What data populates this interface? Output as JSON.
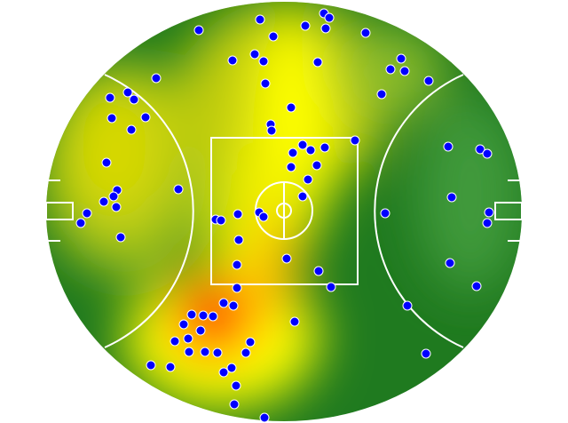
{
  "chart_data": {
    "type": "scatter",
    "color": "#0000ff",
    "xlim": [
      -268,
      268
    ],
    "ylim": [
      -236,
      236
    ],
    "x": [
      45,
      51,
      -27,
      24,
      47,
      -96,
      -12,
      92,
      -33,
      -58,
      -23,
      38,
      132,
      120,
      136,
      -144,
      -21,
      163,
      110,
      -176,
      -196,
      -169,
      8,
      -156,
      -194,
      -15,
      -14,
      -172,
      80,
      21,
      46,
      30,
      10,
      185,
      221,
      229,
      -200,
      37,
      8,
      27,
      -188,
      -119,
      -192,
      -203,
      21,
      189,
      -189,
      -52,
      -28,
      -222,
      114,
      231,
      -77,
      -71,
      -23,
      -229,
      229,
      -51,
      -184,
      3,
      -53,
      187,
      39,
      -53,
      53,
      217,
      -68,
      -57,
      139,
      -104,
      -91,
      -80,
      -113,
      12,
      -94,
      -108,
      -38,
      -123,
      -107,
      -89,
      -75,
      -43,
      160,
      -150,
      -128,
      -59,
      -68,
      -54,
      -56,
      -22
    ],
    "values": [
      223,
      218,
      216,
      209,
      206,
      204,
      197,
      201,
      177,
      170,
      169,
      168,
      172,
      160,
      158,
      150,
      144,
      147,
      132,
      134,
      128,
      126,
      117,
      106,
      105,
      98,
      91,
      92,
      80,
      75,
      72,
      69,
      66,
      73,
      70,
      65,
      55,
      52,
      50,
      36,
      24,
      25,
      17,
      11,
      17,
      16,
      5,
      -3,
      -1,
      -2,
      -2,
      -1,
      -9,
      -10,
      -6,
      -13,
      -13,
      -32,
      -29,
      -53,
      -60,
      -58,
      -67,
      -86,
      -85,
      -84,
      -103,
      -106,
      -106,
      -116,
      -117,
      -118,
      -127,
      -124,
      -134,
      -143,
      -147,
      -146,
      -158,
      -158,
      -159,
      -159,
      -160,
      -173,
      -175,
      -176,
      -181,
      -196,
      -217,
      -232
    ]
  }
}
